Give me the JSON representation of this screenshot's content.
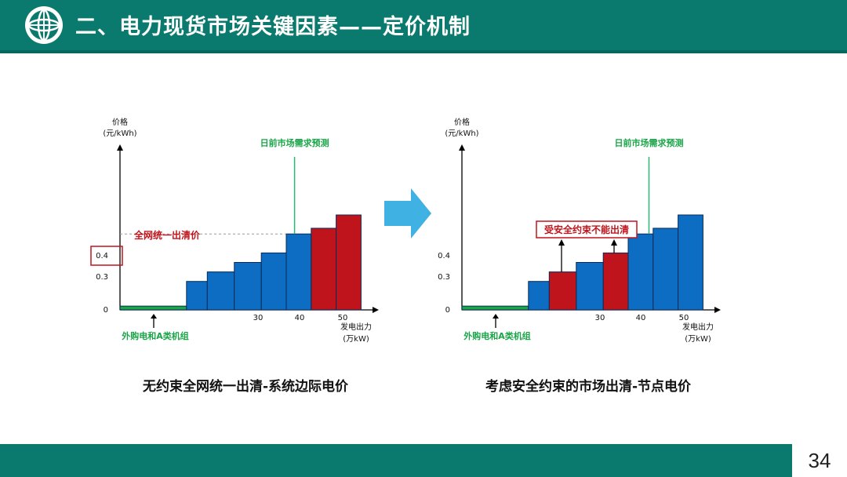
{
  "header": {
    "title": "二、电力现货市场关键因素——定价机制",
    "logo_icon": "state-grid-globe-icon",
    "bg_color": "#0b7a6e"
  },
  "footer": {
    "page_number": "34"
  },
  "colors": {
    "blue": "#0d6dc2",
    "red": "#c0141c",
    "green": "#1aa648",
    "demand_line": "#2bb673",
    "label_red": "#c0141c",
    "label_green": "#1aa648"
  },
  "arrow": {
    "icon": "right-arrow-icon",
    "color": "#3fb1e3"
  },
  "charts": [
    {
      "ylabel": "价格",
      "yunit": "(元/kWh)",
      "xlabel": "发电出力",
      "xunit": "(万kW)",
      "y_ticks": [
        "0.4",
        "0.3",
        "0"
      ],
      "x_ticks": [
        "30",
        "40",
        "50"
      ],
      "demand_label": "日前市场需求预测",
      "price_label": "全网统一出清价",
      "external_label": "外购电和A类机组",
      "caption": "无约束全网统一出清-系统边际电价"
    },
    {
      "ylabel": "价格",
      "yunit": "(元/kWh)",
      "xlabel": "发电出力",
      "xunit": "(万kW)",
      "y_ticks": [
        "0.4",
        "0.3",
        "0"
      ],
      "x_ticks": [
        "30",
        "40",
        "50"
      ],
      "demand_label": "日前市场需求预测",
      "constraint_label": "受安全约束不能出清",
      "external_label": "外购电和A类机组",
      "caption": "考虑安全约束的市场出清-节点电价"
    }
  ],
  "chart_data": [
    {
      "type": "bar",
      "title": "无约束全网统一出清-系统边际电价",
      "xlabel": "发电出力(万kW)",
      "ylabel": "价格(元/kWh)",
      "x_ticks": [
        30,
        40,
        50
      ],
      "y_ticks": [
        0,
        0.3,
        0.4
      ],
      "clearing_price": 0.4,
      "demand_forecast_x": 42,
      "series": [
        {
          "name": "外购电和A类机组",
          "color": "#1aa648",
          "blocks": [
            {
              "x0": 0,
              "x1": 16,
              "price": 0.02
            }
          ]
        },
        {
          "color": "#0d6dc2",
          "blocks": [
            {
              "x0": 16,
              "x1": 21,
              "price": 0.15
            },
            {
              "x0": 21,
              "x1": 27.5,
              "price": 0.2
            },
            {
              "x0": 27.5,
              "x1": 34,
              "price": 0.25
            },
            {
              "x0": 34,
              "x1": 40,
              "price": 0.3
            },
            {
              "x0": 40,
              "x1": 46,
              "price": 0.4
            }
          ]
        },
        {
          "color": "#c0141c",
          "blocks": [
            {
              "x0": 46,
              "x1": 52,
              "price": 0.43
            },
            {
              "x0": 52,
              "x1": 58,
              "price": 0.5
            }
          ]
        }
      ]
    },
    {
      "type": "bar",
      "title": "考虑安全约束的市场出清-节点电价",
      "xlabel": "发电出力(万kW)",
      "ylabel": "价格(元/kWh)",
      "x_ticks": [
        30,
        40,
        50
      ],
      "y_ticks": [
        0,
        0.3,
        0.4
      ],
      "demand_forecast_x": 45,
      "series": [
        {
          "name": "外购电和A类机组",
          "color": "#1aa648",
          "blocks": [
            {
              "x0": 0,
              "x1": 16,
              "price": 0.02
            }
          ]
        },
        {
          "color": "#0d6dc2",
          "blocks": [
            {
              "x0": 16,
              "x1": 21,
              "price": 0.15
            },
            {
              "x0": 27.5,
              "x1": 34,
              "price": 0.25
            },
            {
              "x0": 40,
              "x1": 46,
              "price": 0.4
            },
            {
              "x0": 46,
              "x1": 52,
              "price": 0.43
            },
            {
              "x0": 52,
              "x1": 58,
              "price": 0.5
            }
          ]
        },
        {
          "color": "#c0141c",
          "blocks": [
            {
              "x0": 21,
              "x1": 27.5,
              "price": 0.2
            },
            {
              "x0": 34,
              "x1": 40,
              "price": 0.3
            }
          ]
        }
      ]
    }
  ]
}
